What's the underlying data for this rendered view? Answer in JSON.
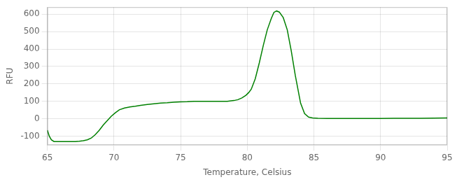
{
  "chart_data": {
    "type": "line",
    "xlabel": "Temperature, Celsius",
    "ylabel": "RFU",
    "color": "#008000",
    "grid": true,
    "xlim": [
      65,
      95
    ],
    "ylim": [
      -150,
      640
    ],
    "xticks": [
      65,
      70,
      75,
      80,
      85,
      90,
      95
    ],
    "yticks": [
      -100,
      0,
      100,
      200,
      300,
      400,
      500,
      600
    ],
    "x": [
      65.0,
      65.15,
      65.3,
      65.5,
      65.7,
      65.9,
      66.1,
      66.3,
      66.6,
      66.9,
      67.1,
      67.4,
      67.7,
      68.0,
      68.3,
      68.6,
      68.9,
      69.2,
      69.5,
      69.8,
      70.1,
      70.4,
      70.8,
      71.2,
      71.6,
      72.0,
      72.5,
      73.0,
      73.5,
      74.0,
      74.5,
      75.0,
      75.5,
      76.0,
      76.5,
      77.0,
      77.5,
      78.0,
      78.5,
      79.0,
      79.3,
      79.6,
      79.9,
      80.1,
      80.3,
      80.6,
      80.9,
      81.2,
      81.5,
      81.8,
      82.0,
      82.2,
      82.4,
      82.7,
      83.0,
      83.3,
      83.6,
      84.0,
      84.3,
      84.6,
      84.9,
      85.3,
      86.0,
      87.0,
      88.0,
      89.0,
      90.0,
      91.0,
      92.0,
      93.0,
      94.0,
      95.0
    ],
    "values": [
      -65,
      -100,
      -120,
      -130,
      -130,
      -130,
      -130,
      -130,
      -130,
      -130,
      -130,
      -128,
      -125,
      -120,
      -110,
      -90,
      -65,
      -35,
      -10,
      15,
      35,
      52,
      62,
      68,
      72,
      77,
      82,
      86,
      90,
      92,
      95,
      97,
      98,
      100,
      100,
      100,
      100,
      100,
      100,
      105,
      110,
      120,
      135,
      150,
      170,
      230,
      320,
      420,
      510,
      575,
      610,
      618,
      612,
      580,
      510,
      390,
      250,
      90,
      30,
      10,
      5,
      3,
      2,
      2,
      2,
      2,
      2,
      3,
      3,
      3,
      4,
      5
    ]
  }
}
